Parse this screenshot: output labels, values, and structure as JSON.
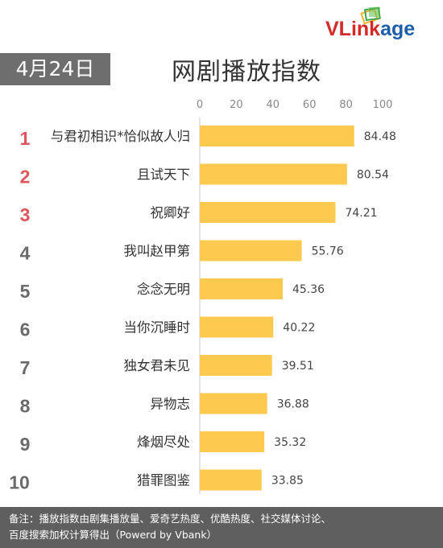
{
  "header": {
    "date": "4月24日",
    "title": "网剧播放指数",
    "logo": "VLinkage"
  },
  "colors": {
    "bar": "#fdc94f",
    "rank_top": "#e0555b",
    "rank_other": "#6b6b6b",
    "badge_bg": "#6e6e6e",
    "footer_bg": "#5f5f5f"
  },
  "chart_data": {
    "type": "bar",
    "orientation": "horizontal",
    "ranks": [
      "1",
      "2",
      "3",
      "4",
      "5",
      "6",
      "7",
      "8",
      "9",
      "10"
    ],
    "categories": [
      "与君初相识*恰似故人归",
      "且试天下",
      "祝卿好",
      "我叫赵甲第",
      "念念无明",
      "当你沉睡时",
      "独女君未见",
      "异物志",
      "烽烟尽处",
      "猎罪图鉴"
    ],
    "values": [
      84.48,
      80.54,
      74.21,
      55.76,
      45.36,
      40.22,
      39.51,
      36.88,
      35.32,
      33.85
    ],
    "value_labels": [
      "84.48",
      "80.54",
      "74.21",
      "55.76",
      "45.36",
      "40.22",
      "39.51",
      "36.88",
      "35.32",
      "33.85"
    ],
    "xlim": [
      0,
      100
    ],
    "xticks": [
      "0",
      "20",
      "40",
      "60",
      "80",
      "100"
    ],
    "grid": false,
    "axis_position": "top"
  },
  "footer": {
    "line1": "备注：播放指数由剧集播放量、爱奇艺热度、优酷热度、社交媒体讨论、",
    "line2": "百度搜索加权计算得出（Powerd by Vbank）"
  }
}
